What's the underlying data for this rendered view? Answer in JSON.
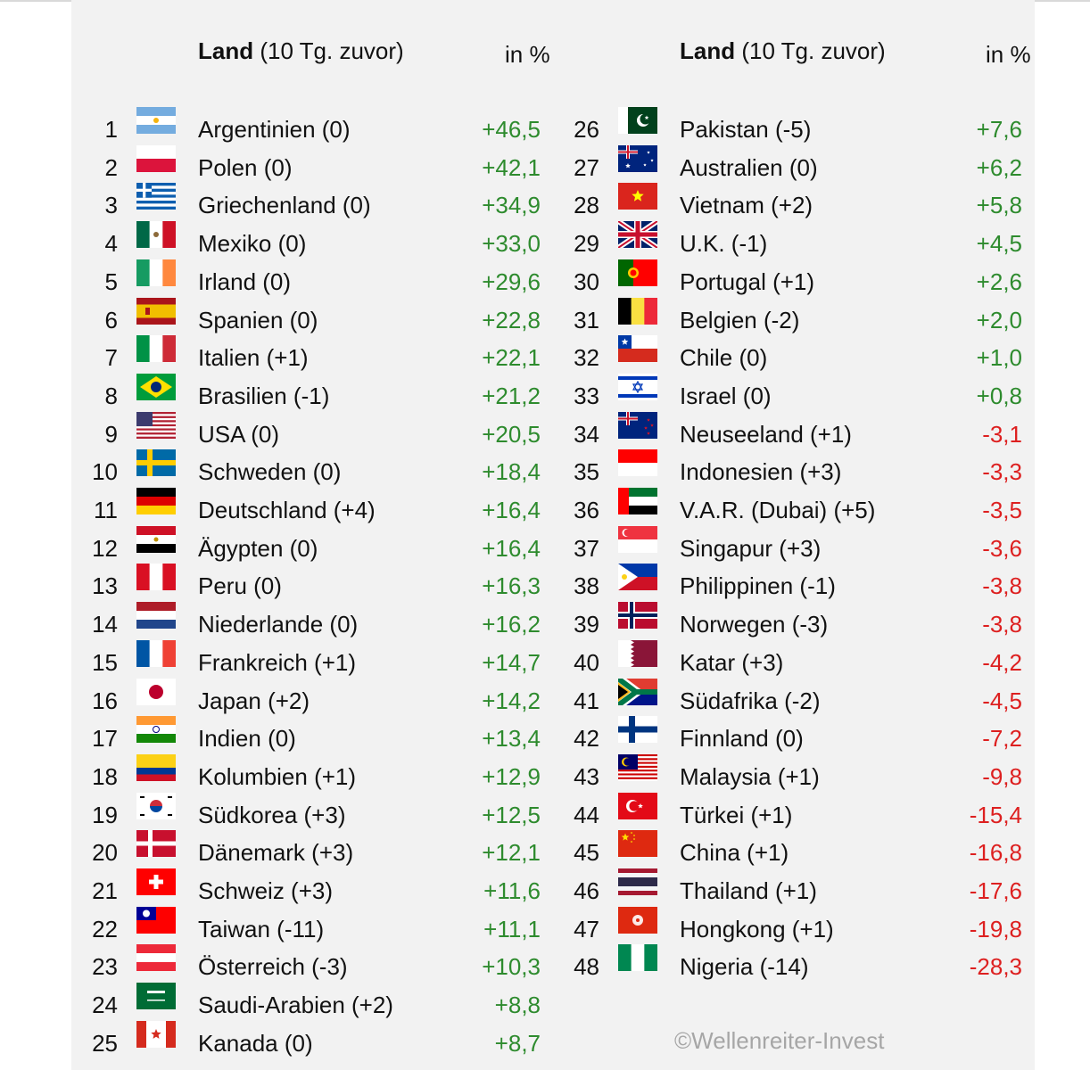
{
  "header": {
    "left": {
      "land": "Land",
      "sub": "(10 Tg. zuvor)",
      "pct": "in %"
    },
    "right": {
      "land": "Land",
      "sub": "(10 Tg. zuvor)",
      "pct": "in %"
    }
  },
  "copyright": "©Wellenreiter-Invest",
  "colors": {
    "positive": "#2e8b2e",
    "negative": "#dd2020",
    "panel": "#f2f2f2"
  },
  "rows": [
    {
      "rank": "1",
      "flag": "AR",
      "name": "Argentinien (0)",
      "value": "+46,5"
    },
    {
      "rank": "2",
      "flag": "PL",
      "name": "Polen (0)",
      "value": "+42,1"
    },
    {
      "rank": "3",
      "flag": "GR",
      "name": "Griechenland (0)",
      "value": "+34,9"
    },
    {
      "rank": "4",
      "flag": "MX",
      "name": "Mexiko (0)",
      "value": "+33,0"
    },
    {
      "rank": "5",
      "flag": "IE",
      "name": "Irland (0)",
      "value": "+29,6"
    },
    {
      "rank": "6",
      "flag": "ES",
      "name": "Spanien (0)",
      "value": "+22,8"
    },
    {
      "rank": "7",
      "flag": "IT",
      "name": "Italien (+1)",
      "value": "+22,1"
    },
    {
      "rank": "8",
      "flag": "BR",
      "name": "Brasilien (-1)",
      "value": "+21,2"
    },
    {
      "rank": "9",
      "flag": "US",
      "name": "USA (0)",
      "value": "+20,5"
    },
    {
      "rank": "10",
      "flag": "SE",
      "name": "Schweden (0)",
      "value": "+18,4"
    },
    {
      "rank": "11",
      "flag": "DE",
      "name": "Deutschland (+4)",
      "value": "+16,4"
    },
    {
      "rank": "12",
      "flag": "EG",
      "name": "Ägypten (0)",
      "value": "+16,4"
    },
    {
      "rank": "13",
      "flag": "PE",
      "name": "Peru (0)",
      "value": "+16,3"
    },
    {
      "rank": "14",
      "flag": "NL",
      "name": "Niederlande (0)",
      "value": "+16,2"
    },
    {
      "rank": "15",
      "flag": "FR",
      "name": "Frankreich (+1)",
      "value": "+14,7"
    },
    {
      "rank": "16",
      "flag": "JP",
      "name": "Japan (+2)",
      "value": "+14,2"
    },
    {
      "rank": "17",
      "flag": "IN",
      "name": "Indien (0)",
      "value": "+13,4"
    },
    {
      "rank": "18",
      "flag": "CO",
      "name": "Kolumbien (+1)",
      "value": "+12,9"
    },
    {
      "rank": "19",
      "flag": "KR",
      "name": "Südkorea (+3)",
      "value": "+12,5"
    },
    {
      "rank": "20",
      "flag": "DK",
      "name": "Dänemark (+3)",
      "value": "+12,1"
    },
    {
      "rank": "21",
      "flag": "CH",
      "name": "Schweiz (+3)",
      "value": "+11,6"
    },
    {
      "rank": "22",
      "flag": "TW",
      "name": "Taiwan (-11)",
      "value": "+11,1"
    },
    {
      "rank": "23",
      "flag": "AT",
      "name": "Österreich (-3)",
      "value": "+10,3"
    },
    {
      "rank": "24",
      "flag": "SA",
      "name": "Saudi-Arabien (+2)",
      "value": "+8,8"
    },
    {
      "rank": "25",
      "flag": "CA",
      "name": "Kanada (0)",
      "value": "+8,7"
    },
    {
      "rank": "26",
      "flag": "PK",
      "name": "Pakistan (-5)",
      "value": "+7,6"
    },
    {
      "rank": "27",
      "flag": "AU",
      "name": "Australien (0)",
      "value": "+6,2"
    },
    {
      "rank": "28",
      "flag": "VN",
      "name": "Vietnam (+2)",
      "value": "+5,8"
    },
    {
      "rank": "29",
      "flag": "UK",
      "name": "U.K. (-1)",
      "value": "+4,5"
    },
    {
      "rank": "30",
      "flag": "PT",
      "name": "Portugal (+1)",
      "value": "+2,6"
    },
    {
      "rank": "31",
      "flag": "BE",
      "name": "Belgien (-2)",
      "value": "+2,0"
    },
    {
      "rank": "32",
      "flag": "CL",
      "name": "Chile (0)",
      "value": "+1,0"
    },
    {
      "rank": "33",
      "flag": "IL",
      "name": "Israel (0)",
      "value": "+0,8"
    },
    {
      "rank": "34",
      "flag": "NZ",
      "name": "Neuseeland (+1)",
      "value": "-3,1"
    },
    {
      "rank": "35",
      "flag": "ID",
      "name": "Indonesien (+3)",
      "value": "-3,3"
    },
    {
      "rank": "36",
      "flag": "AE",
      "name": "V.A.R. (Dubai) (+5)",
      "value": "-3,5"
    },
    {
      "rank": "37",
      "flag": "SG",
      "name": "Singapur (+3)",
      "value": "-3,6"
    },
    {
      "rank": "38",
      "flag": "PH",
      "name": "Philippinen (-1)",
      "value": "-3,8"
    },
    {
      "rank": "39",
      "flag": "NO",
      "name": "Norwegen (-3)",
      "value": "-3,8"
    },
    {
      "rank": "40",
      "flag": "QA",
      "name": "Katar (+3)",
      "value": "-4,2"
    },
    {
      "rank": "41",
      "flag": "ZA",
      "name": "Südafrika (-2)",
      "value": "-4,5"
    },
    {
      "rank": "42",
      "flag": "FI",
      "name": "Finnland (0)",
      "value": "-7,2"
    },
    {
      "rank": "43",
      "flag": "MY",
      "name": "Malaysia (+1)",
      "value": "-9,8"
    },
    {
      "rank": "44",
      "flag": "TR",
      "name": "Türkei (+1)",
      "value": "-15,4"
    },
    {
      "rank": "45",
      "flag": "CN",
      "name": "China (+1)",
      "value": "-16,8"
    },
    {
      "rank": "46",
      "flag": "TH",
      "name": "Thailand (+1)",
      "value": "-17,6"
    },
    {
      "rank": "47",
      "flag": "HK",
      "name": "Hongkong (+1)",
      "value": "-19,8"
    },
    {
      "rank": "48",
      "flag": "NG",
      "name": "Nigeria (-14)",
      "value": "-28,3"
    }
  ]
}
